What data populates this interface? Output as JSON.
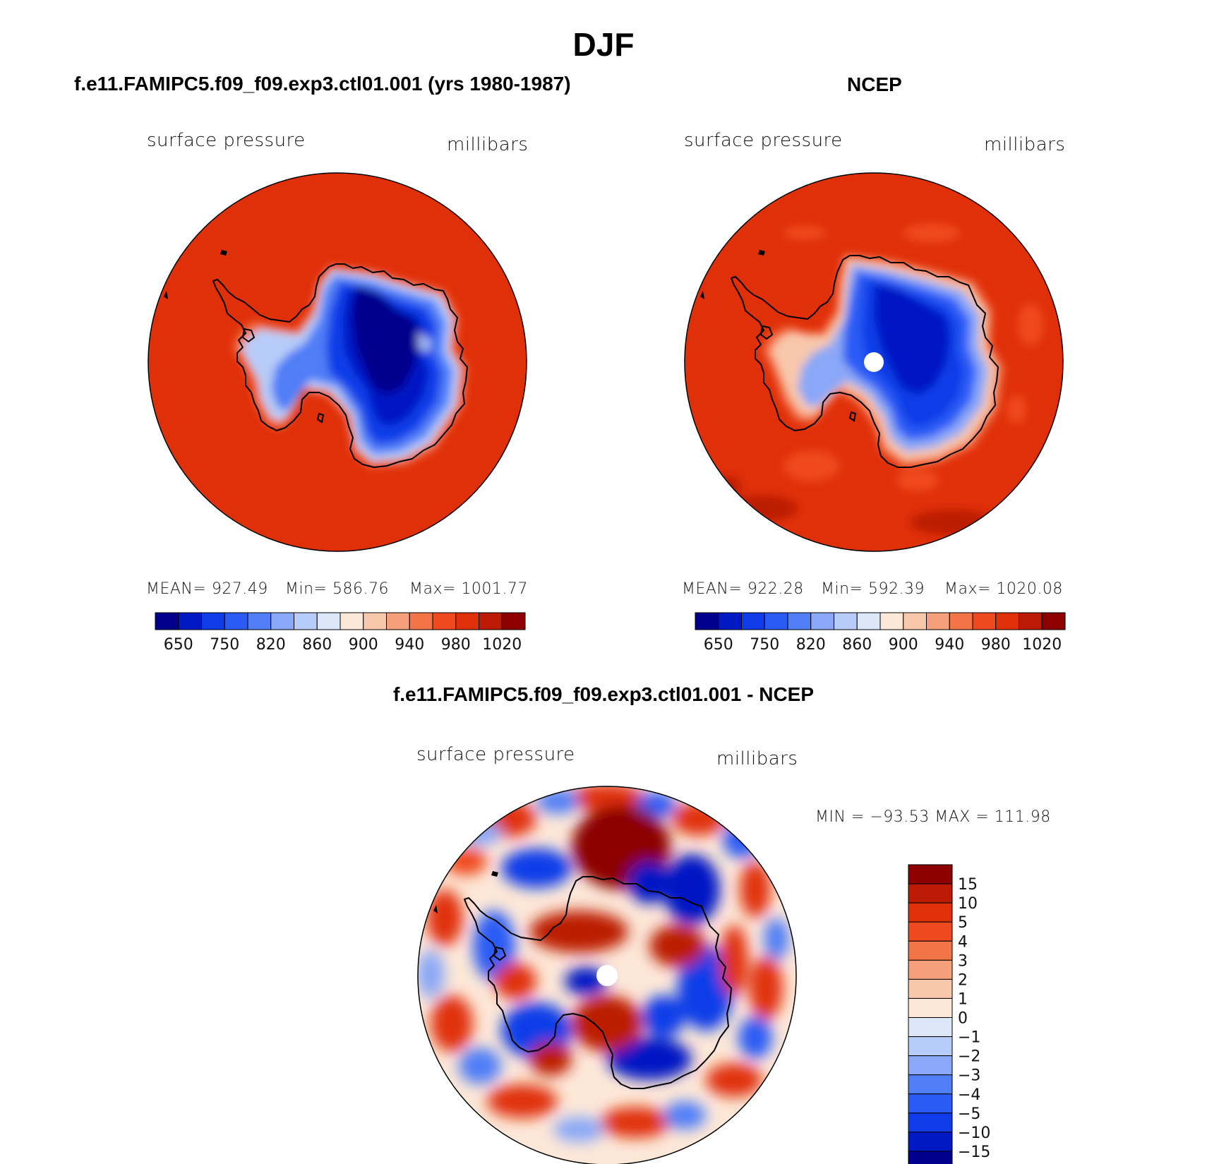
{
  "figure": {
    "title": "DJF"
  },
  "panels": [
    {
      "id": "model",
      "title": "f.e11.FAMIPC5.f09_f09.exp3.ctl01.001 (yrs 1980-1987)",
      "variable": "surface pressure",
      "units": "millibars",
      "stats": {
        "mean": "MEAN= 927.49",
        "min": "Min= 586.76",
        "max": "Max= 1001.77"
      }
    },
    {
      "id": "obs",
      "title": "NCEP",
      "variable": "surface pressure",
      "units": "millibars",
      "stats": {
        "mean": "MEAN= 922.28",
        "min": "Min= 592.39",
        "max": "Max= 1020.08"
      }
    },
    {
      "id": "diff",
      "title": "f.e11.FAMIPC5.f09_f09.exp3.ctl01.001 - NCEP",
      "variable": "surface pressure",
      "units": "millibars",
      "minmax": "MIN = −93.53 MAX = 111.98"
    }
  ],
  "colorbar_abs": {
    "labels": [
      "650",
      "750",
      "820",
      "860",
      "900",
      "940",
      "980",
      "1020"
    ],
    "colors": [
      "#00008c",
      "#0019c4",
      "#0f3ce8",
      "#2a5cf5",
      "#4f7ef7",
      "#8aa8f7",
      "#b7ccf8",
      "#dce8f8",
      "#fde8d8",
      "#f8c8ac",
      "#f5a07a",
      "#f27548",
      "#ef4a1f",
      "#e0300a",
      "#bc1a05",
      "#8c0000"
    ]
  },
  "colorbar_diff": {
    "labels": [
      "15",
      "10",
      "5",
      "4",
      "3",
      "2",
      "1",
      "0",
      "−1",
      "−2",
      "−3",
      "−4",
      "−5",
      "−10",
      "−15"
    ],
    "colors": [
      "#8c0000",
      "#bc1a05",
      "#e0300a",
      "#ef4a1f",
      "#f27548",
      "#f5a07a",
      "#f8c8ac",
      "#fde8d8",
      "#dce8f8",
      "#b7ccf8",
      "#8aa8f7",
      "#4f7ef7",
      "#2a5cf5",
      "#0f3ce8",
      "#0019c4",
      "#00008c"
    ]
  }
}
